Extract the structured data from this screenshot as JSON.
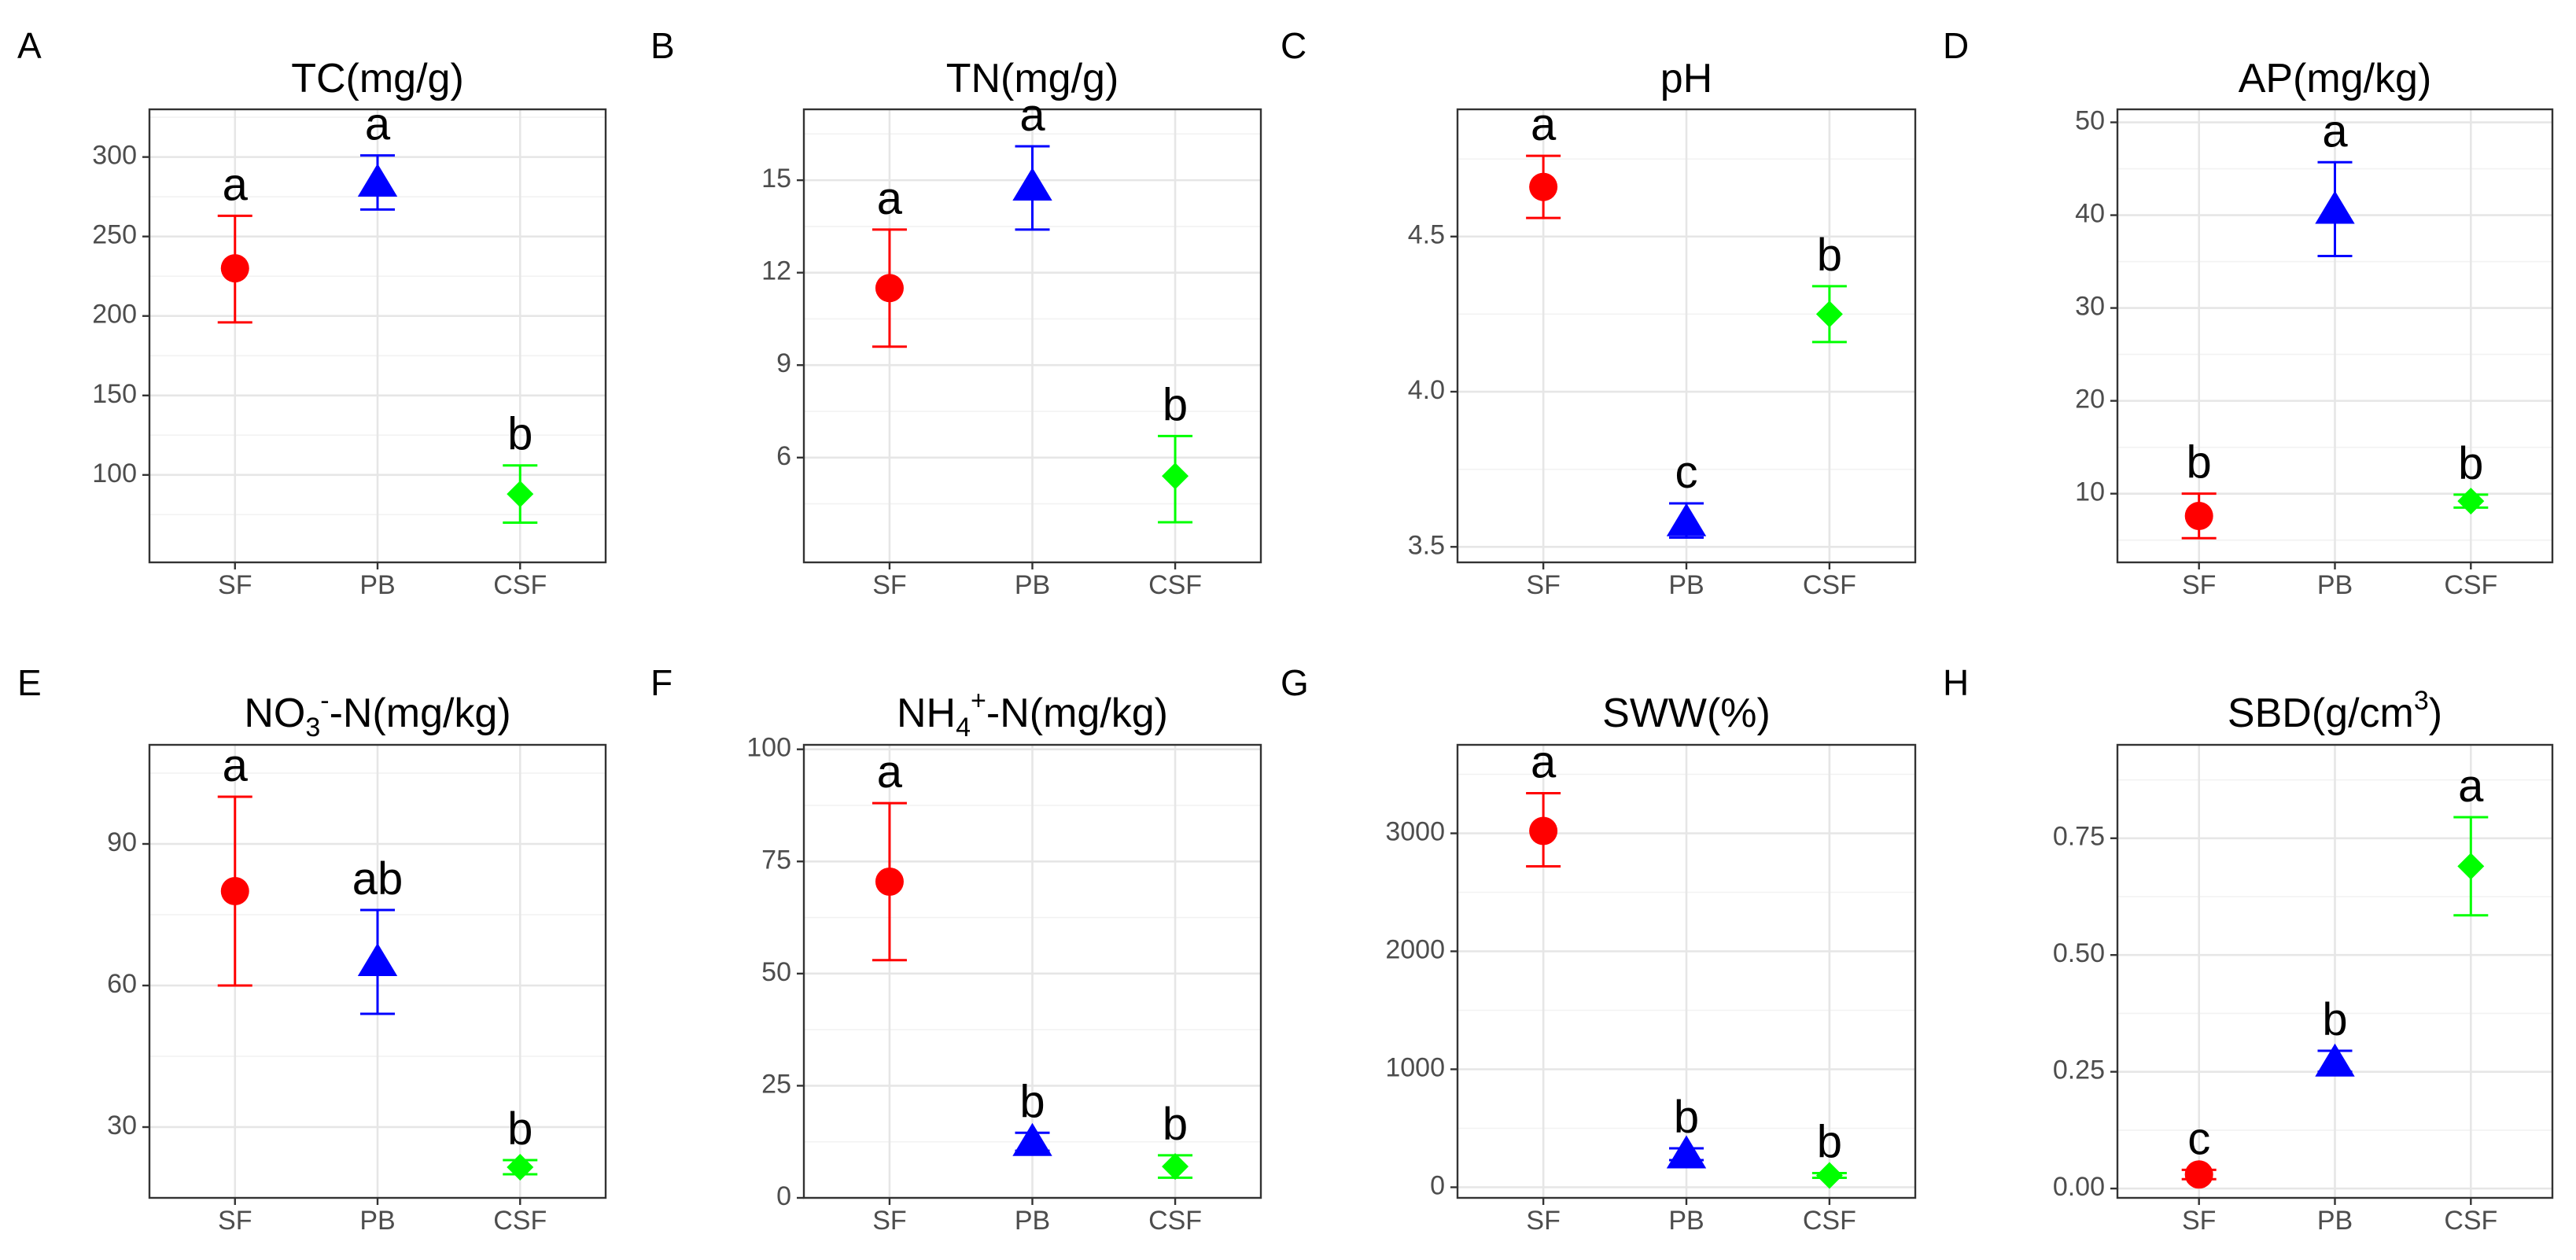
{
  "chart_data": [
    {
      "type": "scatter",
      "panel": "A",
      "title": "TC(mg/g)",
      "title_parts": [
        {
          "t": "TC(mg/g)"
        }
      ],
      "categories": [
        "SF",
        "PB",
        "CSF"
      ],
      "ylim": [
        45,
        330
      ],
      "yticks": [
        100,
        150,
        200,
        250,
        300
      ],
      "ytick_labels": [
        "100",
        "150",
        "200",
        "250",
        "300"
      ],
      "points": [
        {
          "cat": "SF",
          "mean": 230,
          "lower": 196,
          "upper": 263,
          "label": "a"
        },
        {
          "cat": "PB",
          "mean": 284,
          "lower": 267,
          "upper": 301,
          "label": "a"
        },
        {
          "cat": "CSF",
          "mean": 88,
          "lower": 70,
          "upper": 106,
          "label": "b"
        }
      ]
    },
    {
      "type": "scatter",
      "panel": "B",
      "title": "TN(mg/g)",
      "title_parts": [
        {
          "t": "TN(mg/g)"
        }
      ],
      "categories": [
        "SF",
        "PB",
        "CSF"
      ],
      "ylim": [
        2.6,
        17.3
      ],
      "yticks": [
        6,
        9,
        12,
        15
      ],
      "ytick_labels": [
        "6",
        "9",
        "12",
        "15"
      ],
      "points": [
        {
          "cat": "SF",
          "mean": 11.5,
          "lower": 9.6,
          "upper": 13.4,
          "label": "a"
        },
        {
          "cat": "PB",
          "mean": 14.8,
          "lower": 13.4,
          "upper": 16.1,
          "label": "a"
        },
        {
          "cat": "CSF",
          "mean": 5.4,
          "lower": 3.9,
          "upper": 6.7,
          "label": "b"
        }
      ]
    },
    {
      "type": "scatter",
      "panel": "C",
      "title": "pH",
      "title_parts": [
        {
          "t": "pH"
        }
      ],
      "categories": [
        "SF",
        "PB",
        "CSF"
      ],
      "ylim": [
        3.45,
        4.91
      ],
      "yticks": [
        3.5,
        4.0,
        4.5
      ],
      "ytick_labels": [
        "3.5",
        "4.0",
        "4.5"
      ],
      "points": [
        {
          "cat": "SF",
          "mean": 4.66,
          "lower": 4.56,
          "upper": 4.76,
          "label": "a"
        },
        {
          "cat": "PB",
          "mean": 3.58,
          "lower": 3.53,
          "upper": 3.64,
          "label": "c"
        },
        {
          "cat": "CSF",
          "mean": 4.25,
          "lower": 4.16,
          "upper": 4.34,
          "label": "b"
        }
      ]
    },
    {
      "type": "scatter",
      "panel": "D",
      "title": "AP(mg/kg)",
      "title_parts": [
        {
          "t": "AP(mg/kg)"
        }
      ],
      "categories": [
        "SF",
        "PB",
        "CSF"
      ],
      "ylim": [
        2.6,
        51.4
      ],
      "yticks": [
        10,
        20,
        30,
        40,
        50
      ],
      "ytick_labels": [
        "10",
        "20",
        "30",
        "40",
        "50"
      ],
      "points": [
        {
          "cat": "SF",
          "mean": 7.6,
          "lower": 5.2,
          "upper": 10.0,
          "label": "b"
        },
        {
          "cat": "PB",
          "mean": 40.6,
          "lower": 35.6,
          "upper": 45.7,
          "label": "a"
        },
        {
          "cat": "CSF",
          "mean": 9.2,
          "lower": 8.5,
          "upper": 9.9,
          "label": "b"
        }
      ]
    },
    {
      "type": "scatter",
      "panel": "E",
      "title": "NO3--N(mg/kg)",
      "title_parts": [
        {
          "t": "NO"
        },
        {
          "t": "3",
          "sub": true
        },
        {
          "t": "-",
          "sup": true
        },
        {
          "t": "-N(mg/kg)"
        }
      ],
      "categories": [
        "SF",
        "PB",
        "CSF"
      ],
      "ylim": [
        15,
        111
      ],
      "yticks": [
        30,
        60,
        90
      ],
      "ytick_labels": [
        "30",
        "60",
        "90"
      ],
      "points": [
        {
          "cat": "SF",
          "mean": 80,
          "lower": 60,
          "upper": 100,
          "label": "a"
        },
        {
          "cat": "PB",
          "mean": 65,
          "lower": 54,
          "upper": 76,
          "label": "ab"
        },
        {
          "cat": "CSF",
          "mean": 21.5,
          "lower": 20,
          "upper": 23,
          "label": "b"
        }
      ]
    },
    {
      "type": "scatter",
      "panel": "F",
      "title": "NH4+-N(mg/kg)",
      "title_parts": [
        {
          "t": "NH"
        },
        {
          "t": "4",
          "sub": true
        },
        {
          "t": "+",
          "sup": true
        },
        {
          "t": "-N(mg/kg)"
        }
      ],
      "categories": [
        "SF",
        "PB",
        "CSF"
      ],
      "ylim": [
        0,
        101
      ],
      "yticks": [
        0,
        25,
        50,
        75,
        100
      ],
      "ytick_labels": [
        "0",
        "25",
        "50",
        "75",
        "100"
      ],
      "points": [
        {
          "cat": "SF",
          "mean": 70.5,
          "lower": 53,
          "upper": 88,
          "label": "a"
        },
        {
          "cat": "PB",
          "mean": 12.5,
          "lower": 10.5,
          "upper": 14.5,
          "label": "b"
        },
        {
          "cat": "CSF",
          "mean": 7,
          "lower": 4.5,
          "upper": 9.5,
          "label": "b"
        }
      ]
    },
    {
      "type": "scatter",
      "panel": "G",
      "title": "SWW(%)",
      "title_parts": [
        {
          "t": "SWW(%)"
        }
      ],
      "categories": [
        "SF",
        "PB",
        "CSF"
      ],
      "ylim": [
        -90,
        3750
      ],
      "yticks": [
        0,
        1000,
        2000,
        3000
      ],
      "ytick_labels": [
        "0",
        "1000",
        "2000",
        "3000"
      ],
      "points": [
        {
          "cat": "SF",
          "mean": 3020,
          "lower": 2720,
          "upper": 3340,
          "label": "a"
        },
        {
          "cat": "PB",
          "mean": 280,
          "lower": 230,
          "upper": 330,
          "label": "b"
        },
        {
          "cat": "CSF",
          "mean": 100,
          "lower": 80,
          "upper": 120,
          "label": "b"
        }
      ]
    },
    {
      "type": "scatter",
      "panel": "H",
      "title": "SBD(g/cm3)",
      "title_parts": [
        {
          "t": "SBD(g/cm"
        },
        {
          "t": "3",
          "sup": true
        },
        {
          "t": ")"
        }
      ],
      "categories": [
        "SF",
        "PB",
        "CSF"
      ],
      "ylim": [
        -0.02,
        0.95
      ],
      "yticks": [
        0.0,
        0.25,
        0.5,
        0.75
      ],
      "ytick_labels": [
        "0.00",
        "0.25",
        "0.50",
        "0.75"
      ],
      "points": [
        {
          "cat": "SF",
          "mean": 0.03,
          "lower": 0.02,
          "upper": 0.04,
          "label": "c"
        },
        {
          "cat": "PB",
          "mean": 0.27,
          "lower": 0.25,
          "upper": 0.295,
          "label": "b"
        },
        {
          "cat": "CSF",
          "mean": 0.69,
          "lower": 0.585,
          "upper": 0.795,
          "label": "a"
        }
      ]
    }
  ],
  "colors": {
    "SF": "#ff0000",
    "PB": "#0000ff",
    "CSF": "#00ff00"
  },
  "markers": {
    "SF": "circle",
    "PB": "triangle",
    "CSF": "diamond"
  }
}
